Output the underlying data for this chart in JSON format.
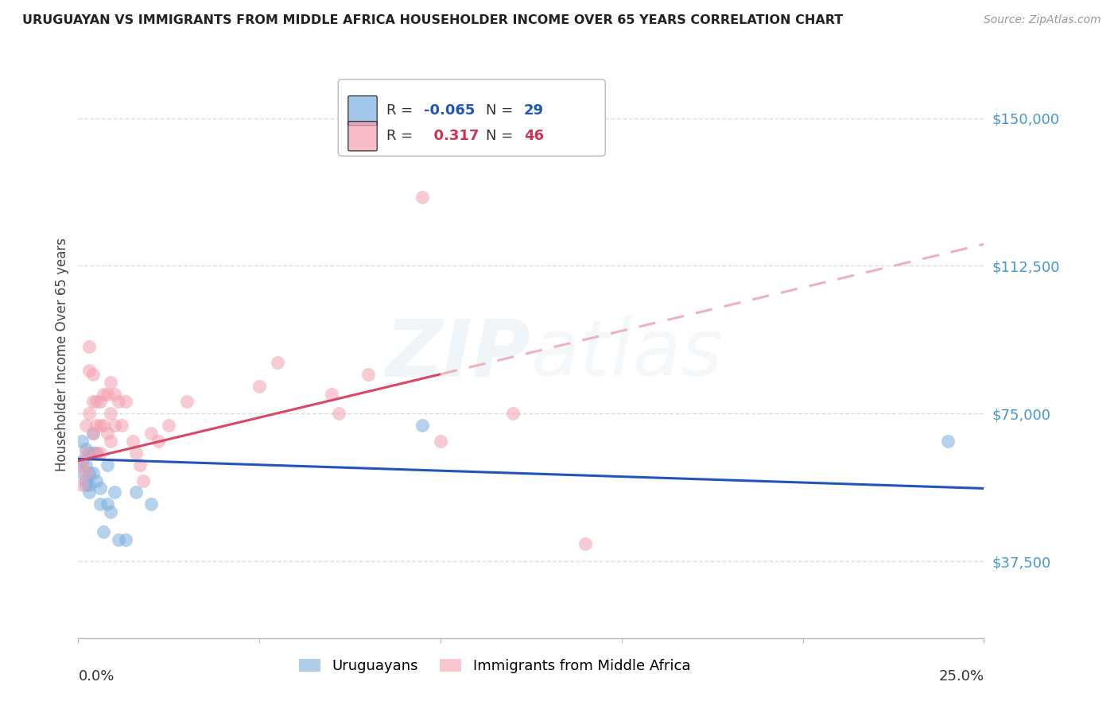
{
  "title": "URUGUAYAN VS IMMIGRANTS FROM MIDDLE AFRICA HOUSEHOLDER INCOME OVER 65 YEARS CORRELATION CHART",
  "source": "Source: ZipAtlas.com",
  "ylabel": "Householder Income Over 65 years",
  "xlim": [
    0.0,
    0.25
  ],
  "ylim": [
    18000,
    162000
  ],
  "yticks": [
    37500,
    75000,
    112500,
    150000
  ],
  "ytick_labels": [
    "$37,500",
    "$75,000",
    "$112,500",
    "$150,000"
  ],
  "background_color": "#ffffff",
  "grid_color": "#dddddd",
  "watermark": "ZIPAtlas",
  "blue_color": "#7aaedd",
  "pink_color": "#f4a0b0",
  "blue_line_color": "#2255bb",
  "pink_line_color": "#dd4466",
  "pink_dash_color": "#f0b0c0",
  "uruguayan_label": "Uruguayans",
  "immigrant_label": "Immigrants from Middle Africa",
  "uruguayan_x": [
    0.001,
    0.001,
    0.001,
    0.002,
    0.002,
    0.002,
    0.002,
    0.003,
    0.003,
    0.003,
    0.003,
    0.004,
    0.004,
    0.004,
    0.005,
    0.005,
    0.006,
    0.006,
    0.007,
    0.008,
    0.008,
    0.009,
    0.01,
    0.011,
    0.013,
    0.016,
    0.02,
    0.095,
    0.24
  ],
  "uruguayan_y": [
    63000,
    68000,
    60000,
    66000,
    62000,
    57000,
    58000,
    65000,
    60000,
    57000,
    55000,
    70000,
    65000,
    60000,
    65000,
    58000,
    56000,
    52000,
    45000,
    52000,
    62000,
    50000,
    55000,
    43000,
    43000,
    55000,
    52000,
    72000,
    68000
  ],
  "immigrant_x": [
    0.001,
    0.001,
    0.002,
    0.002,
    0.002,
    0.003,
    0.003,
    0.003,
    0.004,
    0.004,
    0.004,
    0.005,
    0.005,
    0.005,
    0.006,
    0.006,
    0.006,
    0.007,
    0.007,
    0.008,
    0.008,
    0.009,
    0.009,
    0.009,
    0.01,
    0.01,
    0.011,
    0.012,
    0.013,
    0.015,
    0.016,
    0.017,
    0.018,
    0.02,
    0.022,
    0.025,
    0.03,
    0.05,
    0.055,
    0.07,
    0.072,
    0.08,
    0.095,
    0.1,
    0.12,
    0.14
  ],
  "immigrant_y": [
    62000,
    57000,
    72000,
    65000,
    60000,
    92000,
    86000,
    75000,
    85000,
    78000,
    70000,
    78000,
    72000,
    65000,
    78000,
    72000,
    65000,
    80000,
    72000,
    80000,
    70000,
    83000,
    75000,
    68000,
    80000,
    72000,
    78000,
    72000,
    78000,
    68000,
    65000,
    62000,
    58000,
    70000,
    68000,
    72000,
    78000,
    82000,
    88000,
    80000,
    75000,
    85000,
    130000,
    68000,
    75000,
    42000
  ],
  "blue_line_x0": 0.0,
  "blue_line_y0": 63500,
  "blue_line_x1": 0.25,
  "blue_line_y1": 56000,
  "pink_line_x0": 0.0,
  "pink_line_y0": 63000,
  "pink_line_solid_x1": 0.1,
  "pink_line_solid_y1": 85000,
  "pink_line_dash_x1": 0.25,
  "pink_line_dash_y1": 118000
}
